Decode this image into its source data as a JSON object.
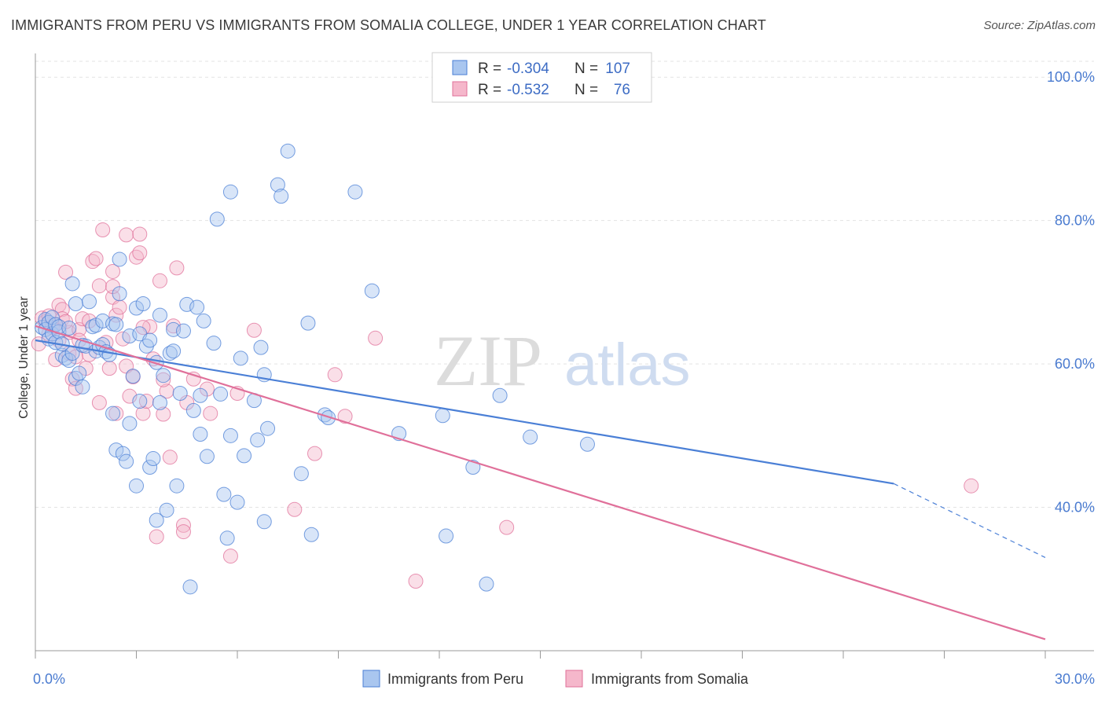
{
  "title": "IMMIGRANTS FROM PERU VS IMMIGRANTS FROM SOMALIA COLLEGE, UNDER 1 YEAR CORRELATION CHART",
  "source": "Source: ZipAtlas.com",
  "watermark": {
    "zip": "ZIP",
    "atlas": "atlas"
  },
  "colors": {
    "peru": "#4a7fd6",
    "peru_fill": "#a9c6ef",
    "somalia": "#e0709a",
    "somalia_fill": "#f5b7cb",
    "tick": "#4a7bd0"
  },
  "legend": {
    "r_label": "R =",
    "n_label": "N =",
    "peru": {
      "r": "-0.304",
      "n": "107"
    },
    "somalia": {
      "r": "-0.532",
      "n": "76"
    }
  },
  "bottom_legend": {
    "peru": "Immigrants from Peru",
    "somalia": "Immigrants from Somalia"
  },
  "chart_data": {
    "type": "scatter",
    "title": "IMMIGRANTS FROM PERU VS IMMIGRANTS FROM SOMALIA COLLEGE, UNDER 1 YEAR CORRELATION CHART",
    "xlabel": "",
    "ylabel": "College, Under 1 year",
    "xlim": [
      0,
      30
    ],
    "ylim": [
      20,
      102
    ],
    "x_tick_labels": [
      "0.0%",
      "30.0%"
    ],
    "y_ticks": [
      40,
      60,
      80,
      100
    ],
    "y_tick_labels": [
      "40.0%",
      "60.0%",
      "80.0%",
      "100.0%"
    ],
    "grid": true,
    "legend_placement": "top-center",
    "series": [
      {
        "name": "Immigrants from Peru",
        "color": "#4a7fd6",
        "trend": {
          "x": [
            0,
            25.5
          ],
          "y": [
            63.3,
            43.3
          ],
          "dashed_to": [
            30,
            33.0
          ]
        },
        "points": [
          [
            0.2,
            65.1
          ],
          [
            0.3,
            66.2
          ],
          [
            0.3,
            64.8
          ],
          [
            0.4,
            65.8
          ],
          [
            0.4,
            63.5
          ],
          [
            0.5,
            66.5
          ],
          [
            0.5,
            64.2
          ],
          [
            0.6,
            65.5
          ],
          [
            0.6,
            63.0
          ],
          [
            0.7,
            64.5
          ],
          [
            0.7,
            65.2
          ],
          [
            0.8,
            61.2
          ],
          [
            0.8,
            62.8
          ],
          [
            0.9,
            60.8
          ],
          [
            1.0,
            65.0
          ],
          [
            1.0,
            60.5
          ],
          [
            1.1,
            71.2
          ],
          [
            1.1,
            61.5
          ],
          [
            1.2,
            68.4
          ],
          [
            1.2,
            58.0
          ],
          [
            1.3,
            58.7
          ],
          [
            1.4,
            62.6
          ],
          [
            1.5,
            62.5
          ],
          [
            1.6,
            68.7
          ],
          [
            1.7,
            65.2
          ],
          [
            1.8,
            61.8
          ],
          [
            1.8,
            65.4
          ],
          [
            1.9,
            62.3
          ],
          [
            2.0,
            66.0
          ],
          [
            2.0,
            62.7
          ],
          [
            2.1,
            61.7
          ],
          [
            2.2,
            61.3
          ],
          [
            2.3,
            65.6
          ],
          [
            2.3,
            53.1
          ],
          [
            2.4,
            65.5
          ],
          [
            2.4,
            48.0
          ],
          [
            2.5,
            74.6
          ],
          [
            2.5,
            69.8
          ],
          [
            2.6,
            47.5
          ],
          [
            2.7,
            46.4
          ],
          [
            2.8,
            63.9
          ],
          [
            2.9,
            58.3
          ],
          [
            3.0,
            67.8
          ],
          [
            3.0,
            43.0
          ],
          [
            3.1,
            64.2
          ],
          [
            3.1,
            54.8
          ],
          [
            3.2,
            68.4
          ],
          [
            3.3,
            62.5
          ],
          [
            3.4,
            63.3
          ],
          [
            3.4,
            45.6
          ],
          [
            3.5,
            46.8
          ],
          [
            3.6,
            38.2
          ],
          [
            3.7,
            66.8
          ],
          [
            3.7,
            54.6
          ],
          [
            3.8,
            58.4
          ],
          [
            3.9,
            39.6
          ],
          [
            4.0,
            61.5
          ],
          [
            4.1,
            61.8
          ],
          [
            4.1,
            64.8
          ],
          [
            4.2,
            43.0
          ],
          [
            4.3,
            55.9
          ],
          [
            4.4,
            64.6
          ],
          [
            4.5,
            68.3
          ],
          [
            4.6,
            28.9
          ],
          [
            4.7,
            53.5
          ],
          [
            4.8,
            67.9
          ],
          [
            4.9,
            55.6
          ],
          [
            4.9,
            50.2
          ],
          [
            5.0,
            66.0
          ],
          [
            5.1,
            47.1
          ],
          [
            5.3,
            62.9
          ],
          [
            5.4,
            80.2
          ],
          [
            5.5,
            55.8
          ],
          [
            5.6,
            41.8
          ],
          [
            5.7,
            35.7
          ],
          [
            5.8,
            84.0
          ],
          [
            5.8,
            50.0
          ],
          [
            6.0,
            40.7
          ],
          [
            6.1,
            60.8
          ],
          [
            6.2,
            47.2
          ],
          [
            6.5,
            54.9
          ],
          [
            6.6,
            49.4
          ],
          [
            6.7,
            62.3
          ],
          [
            6.8,
            58.5
          ],
          [
            6.8,
            38.0
          ],
          [
            6.9,
            51.0
          ],
          [
            7.2,
            85.0
          ],
          [
            7.3,
            83.4
          ],
          [
            7.5,
            89.7
          ],
          [
            7.9,
            44.7
          ],
          [
            8.1,
            65.7
          ],
          [
            8.2,
            36.2
          ],
          [
            8.6,
            52.9
          ],
          [
            8.7,
            52.5
          ],
          [
            9.5,
            84.0
          ],
          [
            10.0,
            70.2
          ],
          [
            10.8,
            50.3
          ],
          [
            12.1,
            52.8
          ],
          [
            12.2,
            36.0
          ],
          [
            13.0,
            45.6
          ],
          [
            13.4,
            29.3
          ],
          [
            13.8,
            55.6
          ],
          [
            14.7,
            49.8
          ],
          [
            16.4,
            48.8
          ],
          [
            1.4,
            56.8
          ],
          [
            2.8,
            51.7
          ],
          [
            3.6,
            60.2
          ]
        ]
      },
      {
        "name": "Immigrants from Somalia",
        "color": "#e0709a",
        "trend": {
          "x": [
            0,
            30
          ],
          "y": [
            65.3,
            21.6
          ]
        },
        "points": [
          [
            0.1,
            62.8
          ],
          [
            0.2,
            66.4
          ],
          [
            0.3,
            65.9
          ],
          [
            0.4,
            64.2
          ],
          [
            0.4,
            66.7
          ],
          [
            0.5,
            65.1
          ],
          [
            0.6,
            65.5
          ],
          [
            0.7,
            63.3
          ],
          [
            0.7,
            68.2
          ],
          [
            0.8,
            67.6
          ],
          [
            0.8,
            66.3
          ],
          [
            0.9,
            72.8
          ],
          [
            1.0,
            61.5
          ],
          [
            1.0,
            64.4
          ],
          [
            1.1,
            57.9
          ],
          [
            1.2,
            56.6
          ],
          [
            1.2,
            61.0
          ],
          [
            1.3,
            64.8
          ],
          [
            1.3,
            63.3
          ],
          [
            1.4,
            66.3
          ],
          [
            1.5,
            59.4
          ],
          [
            1.6,
            66.0
          ],
          [
            1.7,
            74.3
          ],
          [
            1.8,
            74.7
          ],
          [
            1.9,
            54.6
          ],
          [
            1.9,
            70.9
          ],
          [
            2.0,
            78.7
          ],
          [
            2.1,
            63.0
          ],
          [
            2.2,
            59.4
          ],
          [
            2.3,
            69.3
          ],
          [
            2.3,
            72.9
          ],
          [
            2.4,
            53.1
          ],
          [
            2.4,
            66.8
          ],
          [
            2.5,
            67.9
          ],
          [
            2.6,
            63.5
          ],
          [
            2.7,
            78.0
          ],
          [
            2.7,
            59.7
          ],
          [
            2.8,
            55.5
          ],
          [
            2.9,
            58.2
          ],
          [
            3.0,
            74.9
          ],
          [
            3.1,
            78.1
          ],
          [
            3.1,
            75.5
          ],
          [
            3.2,
            53.1
          ],
          [
            3.3,
            54.8
          ],
          [
            3.4,
            65.2
          ],
          [
            3.5,
            60.7
          ],
          [
            3.6,
            35.9
          ],
          [
            3.7,
            71.6
          ],
          [
            3.8,
            53.0
          ],
          [
            3.9,
            56.2
          ],
          [
            4.0,
            47.0
          ],
          [
            4.2,
            73.4
          ],
          [
            4.4,
            37.5
          ],
          [
            4.4,
            36.6
          ],
          [
            4.5,
            54.6
          ],
          [
            4.7,
            57.9
          ],
          [
            5.1,
            56.5
          ],
          [
            5.2,
            53.1
          ],
          [
            5.8,
            33.2
          ],
          [
            6.0,
            55.9
          ],
          [
            6.5,
            64.7
          ],
          [
            7.7,
            39.7
          ],
          [
            8.3,
            47.5
          ],
          [
            8.9,
            58.5
          ],
          [
            9.2,
            52.7
          ],
          [
            10.1,
            63.6
          ],
          [
            11.3,
            29.7
          ],
          [
            14.0,
            37.2
          ],
          [
            27.8,
            43.0
          ],
          [
            0.6,
            60.6
          ],
          [
            1.6,
            61.3
          ],
          [
            2.3,
            70.8
          ],
          [
            3.2,
            65.1
          ],
          [
            4.1,
            65.3
          ],
          [
            0.9,
            65.9
          ],
          [
            3.8,
            57.8
          ]
        ]
      }
    ]
  }
}
